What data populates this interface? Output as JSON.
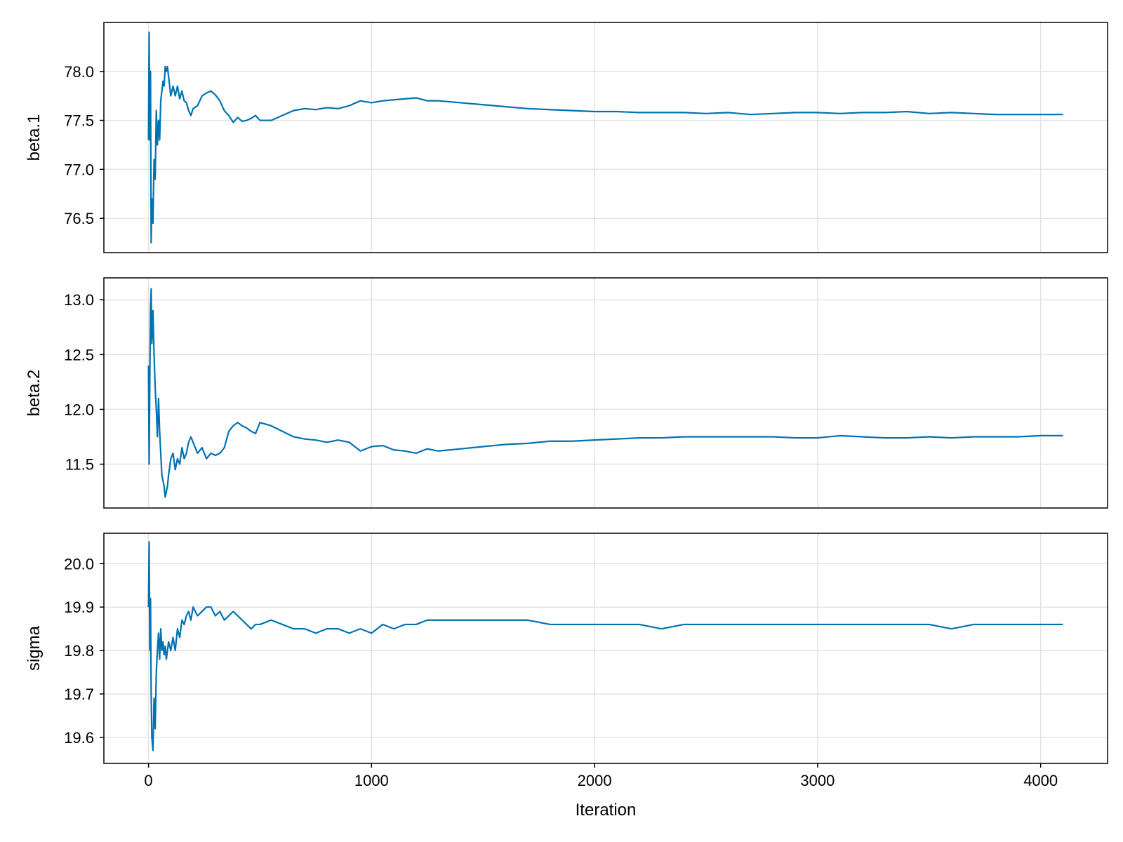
{
  "chart_data": [
    {
      "type": "line",
      "ylabel": "beta.1",
      "xlabel": "",
      "xlim": [
        -200,
        4300
      ],
      "ylim": [
        76.15,
        78.5
      ],
      "x_ticks": [
        0,
        1000,
        2000,
        3000,
        4000
      ],
      "y_ticks": [
        "76.5",
        "77.0",
        "77.5",
        "78.0"
      ],
      "grid": true,
      "color": "#0072b2",
      "series": [
        {
          "x": [
            0,
            3,
            6,
            9,
            12,
            15,
            20,
            25,
            30,
            35,
            40,
            45,
            50,
            55,
            60,
            65,
            70,
            75,
            80,
            85,
            90,
            100,
            110,
            120,
            130,
            140,
            150,
            160,
            170,
            180,
            190,
            200,
            220,
            240,
            260,
            280,
            300,
            320,
            340,
            360,
            380,
            400,
            420,
            440,
            460,
            480,
            500,
            550,
            600,
            650,
            700,
            750,
            800,
            850,
            900,
            950,
            1000,
            1050,
            1100,
            1150,
            1200,
            1250,
            1300,
            1400,
            1500,
            1600,
            1700,
            1800,
            1900,
            2000,
            2100,
            2200,
            2300,
            2400,
            2500,
            2600,
            2700,
            2800,
            2900,
            3000,
            3100,
            3200,
            3300,
            3400,
            3500,
            3600,
            3700,
            3800,
            3900,
            4000,
            4100
          ],
          "y": [
            77.3,
            78.4,
            77.3,
            78.0,
            76.25,
            76.7,
            76.45,
            77.1,
            76.9,
            77.6,
            77.25,
            77.5,
            77.3,
            77.7,
            77.8,
            77.9,
            77.85,
            78.05,
            78.0,
            78.05,
            77.95,
            77.75,
            77.85,
            77.75,
            77.85,
            77.72,
            77.8,
            77.7,
            77.68,
            77.6,
            77.55,
            77.62,
            77.65,
            77.75,
            77.78,
            77.8,
            77.76,
            77.7,
            77.6,
            77.55,
            77.48,
            77.53,
            77.49,
            77.5,
            77.52,
            77.55,
            77.5,
            77.5,
            77.55,
            77.6,
            77.62,
            77.61,
            77.63,
            77.62,
            77.65,
            77.7,
            77.68,
            77.7,
            77.71,
            77.72,
            77.73,
            77.7,
            77.7,
            77.68,
            77.66,
            77.64,
            77.62,
            77.61,
            77.6,
            77.59,
            77.59,
            77.58,
            77.58,
            77.58,
            77.57,
            77.58,
            77.56,
            77.57,
            77.58,
            77.58,
            77.57,
            77.58,
            77.58,
            77.59,
            77.57,
            77.58,
            77.57,
            77.56,
            77.56,
            77.56,
            77.56
          ]
        }
      ]
    },
    {
      "type": "line",
      "ylabel": "beta.2",
      "xlabel": "",
      "xlim": [
        -200,
        4300
      ],
      "ylim": [
        11.1,
        13.2
      ],
      "x_ticks": [
        0,
        1000,
        2000,
        3000,
        4000
      ],
      "y_ticks": [
        "11.5",
        "12.0",
        "12.5",
        "13.0"
      ],
      "grid": true,
      "color": "#0072b2",
      "series": [
        {
          "x": [
            0,
            3,
            6,
            9,
            12,
            15,
            20,
            25,
            30,
            35,
            40,
            45,
            50,
            55,
            60,
            65,
            70,
            75,
            80,
            85,
            90,
            100,
            110,
            120,
            130,
            140,
            150,
            160,
            170,
            180,
            190,
            200,
            220,
            240,
            260,
            280,
            300,
            320,
            340,
            360,
            380,
            400,
            420,
            440,
            460,
            480,
            500,
            550,
            600,
            650,
            700,
            750,
            800,
            850,
            900,
            950,
            1000,
            1050,
            1100,
            1150,
            1200,
            1250,
            1300,
            1400,
            1500,
            1600,
            1700,
            1800,
            1900,
            2000,
            2100,
            2200,
            2300,
            2400,
            2500,
            2600,
            2700,
            2800,
            2900,
            3000,
            3100,
            3200,
            3300,
            3400,
            3500,
            3600,
            3700,
            3800,
            3900,
            4000,
            4100
          ],
          "y": [
            12.4,
            11.5,
            12.3,
            12.9,
            13.1,
            12.6,
            12.9,
            12.5,
            12.2,
            12.0,
            11.75,
            12.1,
            11.8,
            11.6,
            11.4,
            11.35,
            11.3,
            11.2,
            11.25,
            11.3,
            11.4,
            11.55,
            11.6,
            11.45,
            11.55,
            11.5,
            11.65,
            11.55,
            11.6,
            11.7,
            11.75,
            11.7,
            11.6,
            11.65,
            11.55,
            11.6,
            11.58,
            11.6,
            11.65,
            11.8,
            11.85,
            11.88,
            11.85,
            11.83,
            11.8,
            11.78,
            11.88,
            11.85,
            11.8,
            11.75,
            11.73,
            11.72,
            11.7,
            11.72,
            11.7,
            11.62,
            11.66,
            11.67,
            11.63,
            11.62,
            11.6,
            11.64,
            11.62,
            11.64,
            11.66,
            11.68,
            11.69,
            11.71,
            11.71,
            11.72,
            11.73,
            11.74,
            11.74,
            11.75,
            11.75,
            11.75,
            11.75,
            11.75,
            11.74,
            11.74,
            11.76,
            11.75,
            11.74,
            11.74,
            11.75,
            11.74,
            11.75,
            11.75,
            11.75,
            11.76,
            11.76
          ]
        }
      ]
    },
    {
      "type": "line",
      "ylabel": "sigma",
      "xlabel": "Iteration",
      "xlim": [
        -200,
        4300
      ],
      "ylim": [
        19.54,
        20.07
      ],
      "x_ticks": [
        0,
        1000,
        2000,
        3000,
        4000
      ],
      "x_tick_labels": [
        "0",
        "1000",
        "2000",
        "3000",
        "4000"
      ],
      "y_ticks": [
        "19.6",
        "19.7",
        "19.8",
        "19.9",
        "20.0"
      ],
      "grid": true,
      "color": "#0072b2",
      "series": [
        {
          "x": [
            0,
            3,
            6,
            9,
            12,
            15,
            20,
            25,
            30,
            35,
            40,
            45,
            50,
            55,
            60,
            65,
            70,
            75,
            80,
            85,
            90,
            100,
            110,
            120,
            130,
            140,
            150,
            160,
            170,
            180,
            190,
            200,
            220,
            240,
            260,
            280,
            300,
            320,
            340,
            360,
            380,
            400,
            420,
            440,
            460,
            480,
            500,
            550,
            600,
            650,
            700,
            750,
            800,
            850,
            900,
            950,
            1000,
            1050,
            1100,
            1150,
            1200,
            1250,
            1300,
            1400,
            1500,
            1600,
            1700,
            1800,
            1900,
            2000,
            2100,
            2200,
            2300,
            2400,
            2500,
            2600,
            2700,
            2800,
            2900,
            3000,
            3100,
            3200,
            3300,
            3400,
            3500,
            3600,
            3700,
            3800,
            3900,
            4000,
            4100
          ],
          "y": [
            19.9,
            20.05,
            19.8,
            19.92,
            19.7,
            19.6,
            19.57,
            19.69,
            19.62,
            19.75,
            19.8,
            19.84,
            19.78,
            19.85,
            19.8,
            19.82,
            19.79,
            19.81,
            19.78,
            19.8,
            19.82,
            19.8,
            19.83,
            19.8,
            19.85,
            19.83,
            19.87,
            19.86,
            19.88,
            19.89,
            19.87,
            19.9,
            19.88,
            19.89,
            19.9,
            19.9,
            19.88,
            19.89,
            19.87,
            19.88,
            19.89,
            19.88,
            19.87,
            19.86,
            19.85,
            19.86,
            19.86,
            19.87,
            19.86,
            19.85,
            19.85,
            19.84,
            19.85,
            19.85,
            19.84,
            19.85,
            19.84,
            19.86,
            19.85,
            19.86,
            19.86,
            19.87,
            19.87,
            19.87,
            19.87,
            19.87,
            19.87,
            19.86,
            19.86,
            19.86,
            19.86,
            19.86,
            19.85,
            19.86,
            19.86,
            19.86,
            19.86,
            19.86,
            19.86,
            19.86,
            19.86,
            19.86,
            19.86,
            19.86,
            19.86,
            19.85,
            19.86,
            19.86,
            19.86,
            19.86,
            19.86
          ]
        }
      ]
    }
  ]
}
